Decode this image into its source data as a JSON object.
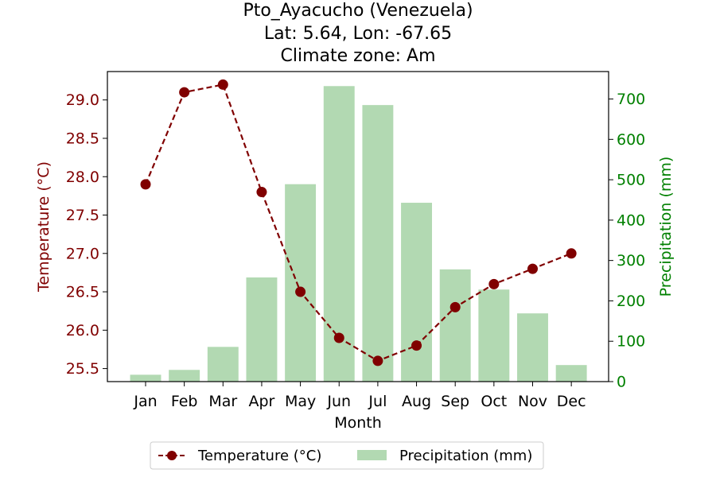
{
  "title": {
    "line1": "Pto_Ayacucho (Venezuela)",
    "line2": "Lat: 5.64, Lon: -67.65",
    "line3": "Climate zone: Am"
  },
  "colors": {
    "temperature": "#800000",
    "precipitation_bar": "#b2d9b2",
    "precipitation_axis": "#008000"
  },
  "chart_data": {
    "type": "bar+line",
    "categories": [
      "Jan",
      "Feb",
      "Mar",
      "Apr",
      "May",
      "Jun",
      "Jul",
      "Aug",
      "Sep",
      "Oct",
      "Nov",
      "Dec"
    ],
    "series": [
      {
        "name": "Temperature (°C)",
        "type": "line",
        "axis": "left",
        "values": [
          27.9,
          29.1,
          29.2,
          27.8,
          26.5,
          25.9,
          25.6,
          25.8,
          26.3,
          26.6,
          26.8,
          27.0
        ]
      },
      {
        "name": "Precipitation (mm)",
        "type": "bar",
        "axis": "right",
        "values": [
          17,
          29,
          86,
          258,
          489,
          732,
          685,
          443,
          278,
          228,
          169,
          41
        ]
      }
    ],
    "xlabel": "Month",
    "ylabel_left": "Temperature (°C)",
    "ylabel_right": "Precipitation (mm)",
    "ylim_left": [
      25.33,
      29.37
    ],
    "ylim_right": [
      0,
      768
    ],
    "yticks_left": [
      "25.5",
      "26.0",
      "26.5",
      "27.0",
      "27.5",
      "28.0",
      "28.5",
      "29.0"
    ],
    "yticks_right": [
      "0",
      "100",
      "200",
      "300",
      "400",
      "500",
      "600",
      "700"
    ],
    "grid": false,
    "legend_position": "bottom-center"
  }
}
